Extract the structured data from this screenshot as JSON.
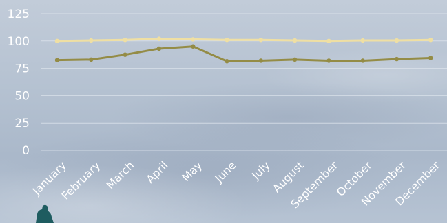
{
  "colors": {
    "gridline": "#dfe5ee",
    "tick_text": "#ffffff",
    "series_light": "#efdfa3",
    "series_dark": "#948c46",
    "decoration": "#1e5c60"
  },
  "decoration_icon": "teal-figure-icon",
  "chart_data": {
    "type": "line",
    "title": "",
    "xlabel": "",
    "ylabel": "",
    "legend": "none",
    "grid": true,
    "ylim": [
      0,
      125
    ],
    "yticks": [
      0,
      25,
      50,
      75,
      100,
      125
    ],
    "categories": [
      "January",
      "February",
      "March",
      "April",
      "May",
      "June",
      "July",
      "August",
      "September",
      "October",
      "November",
      "December"
    ],
    "series": [
      {
        "values": [
          100,
          100.5,
          101,
          102,
          101.5,
          101,
          101,
          100.5,
          100,
          100.5,
          100.5,
          101
        ],
        "color": "#efdfa3"
      },
      {
        "values": [
          82.5,
          83,
          87.5,
          93,
          95,
          81.5,
          82,
          83,
          82,
          82,
          83.5,
          84.5
        ],
        "color": "#948c46"
      }
    ]
  }
}
